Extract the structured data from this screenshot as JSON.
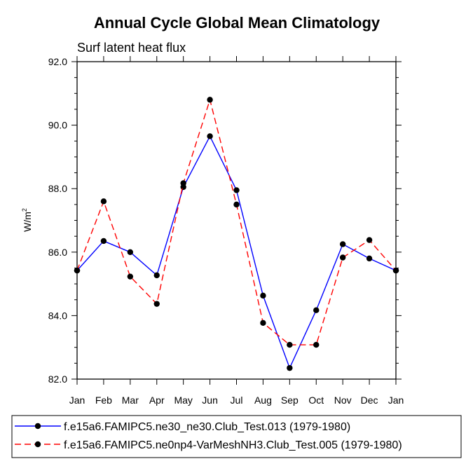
{
  "chart_data": {
    "type": "line",
    "title": "Annual Cycle Global Mean Climatology",
    "subtitle": "Surf latent heat flux",
    "ylabel": "W/m",
    "ylabel_sup": "2",
    "ylim": [
      82.0,
      92.0
    ],
    "yticks": [
      82.0,
      84.0,
      86.0,
      88.0,
      90.0,
      92.0
    ],
    "ytick_labels": [
      "82.0",
      "84.0",
      "86.0",
      "88.0",
      "90.0",
      "92.0"
    ],
    "categories": [
      "Jan",
      "Feb",
      "Mar",
      "Apr",
      "May",
      "Jun",
      "Jul",
      "Aug",
      "Sep",
      "Oct",
      "Nov",
      "Dec",
      "Jan"
    ],
    "grid": false,
    "legend_position": "bottom",
    "series": [
      {
        "name": "f.e15a6.FAMIPC5.ne30_ne30.Club_Test.013 (1979-1980)",
        "color": "#0000ff",
        "dash": "solid",
        "values": [
          85.42,
          86.35,
          86.0,
          85.27,
          88.05,
          89.65,
          87.95,
          84.63,
          82.35,
          84.17,
          86.25,
          85.8,
          85.42
        ]
      },
      {
        "name": "f.e15a6.FAMIPC5.ne0np4-VarMeshNH3.Club_Test.005 (1979-1980)",
        "color": "#ff0000",
        "dash": "dashed",
        "values": [
          85.42,
          87.6,
          85.23,
          84.37,
          88.17,
          90.8,
          87.5,
          83.77,
          83.08,
          83.08,
          85.83,
          86.38,
          85.42
        ]
      }
    ]
  }
}
